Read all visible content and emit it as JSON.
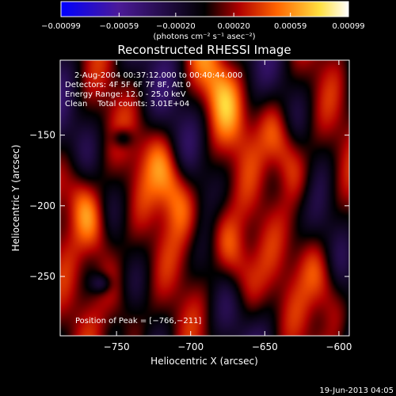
{
  "chart_data": {
    "type": "heatmap",
    "title": "Reconstructed RHESSI Image",
    "xlabel": "Heliocentric X (arcsec)",
    "ylabel": "Heliocentric Y (arcsec)",
    "xlim": [
      -788,
      -593
    ],
    "ylim": [
      -292,
      -97
    ],
    "x_ticks": [
      -750,
      -700,
      -650,
      -600
    ],
    "x_tick_labels": [
      "−750",
      "−700",
      "−650",
      "−600"
    ],
    "y_ticks": [
      -150,
      -200,
      -250
    ],
    "y_tick_labels": [
      "−150",
      "−200",
      "−250"
    ],
    "colorbar": {
      "min": -0.00099,
      "max": 0.00099,
      "ticks": [
        -0.00099,
        -0.00059,
        -0.0002,
        0.0002,
        0.00059,
        0.00099
      ],
      "tick_labels": [
        "−0.00099",
        "−0.00059",
        "−0.00020",
        "0.00020",
        "0.00059",
        "0.00099"
      ],
      "unit_label": "(photons cm⁻² s⁻¹ asec⁻²)",
      "colors": [
        "#0000ff",
        "#4b1a98",
        "#000000",
        "#b00000",
        "#ff6400",
        "#ffe040",
        "#ffffff"
      ]
    },
    "info_lines": [
      "2-Aug-2004 00:37:12.000 to 00:40:44.000",
      "Detectors: 4F 5F 6F 7F 8F, Att 0",
      "Energy Range: 12.0 - 25.0 keV",
      "Clean    Total counts: 3.01E+04"
    ],
    "peak_label": "Position of Peak = [−766,−211]",
    "peak": [
      -766,
      -211
    ],
    "bright_ridges": [
      {
        "x": -770,
        "y": -205,
        "peak": 1.0
      },
      {
        "x": -712,
        "y": -185,
        "peak": 0.85
      },
      {
        "x": -672,
        "y": -235,
        "peak": 0.8
      },
      {
        "x": -637,
        "y": -160,
        "peak": 0.9
      },
      {
        "x": -610,
        "y": -255,
        "peak": 0.7
      },
      {
        "x": -745,
        "y": -275,
        "peak": 0.55
      },
      {
        "x": -680,
        "y": -120,
        "peak": 0.55
      }
    ],
    "dark_spots": [
      {
        "x": -746,
        "y": -152
      },
      {
        "x": -760,
        "y": -255
      }
    ]
  },
  "footer_timestamp": "19-Jun-2013 04:05"
}
